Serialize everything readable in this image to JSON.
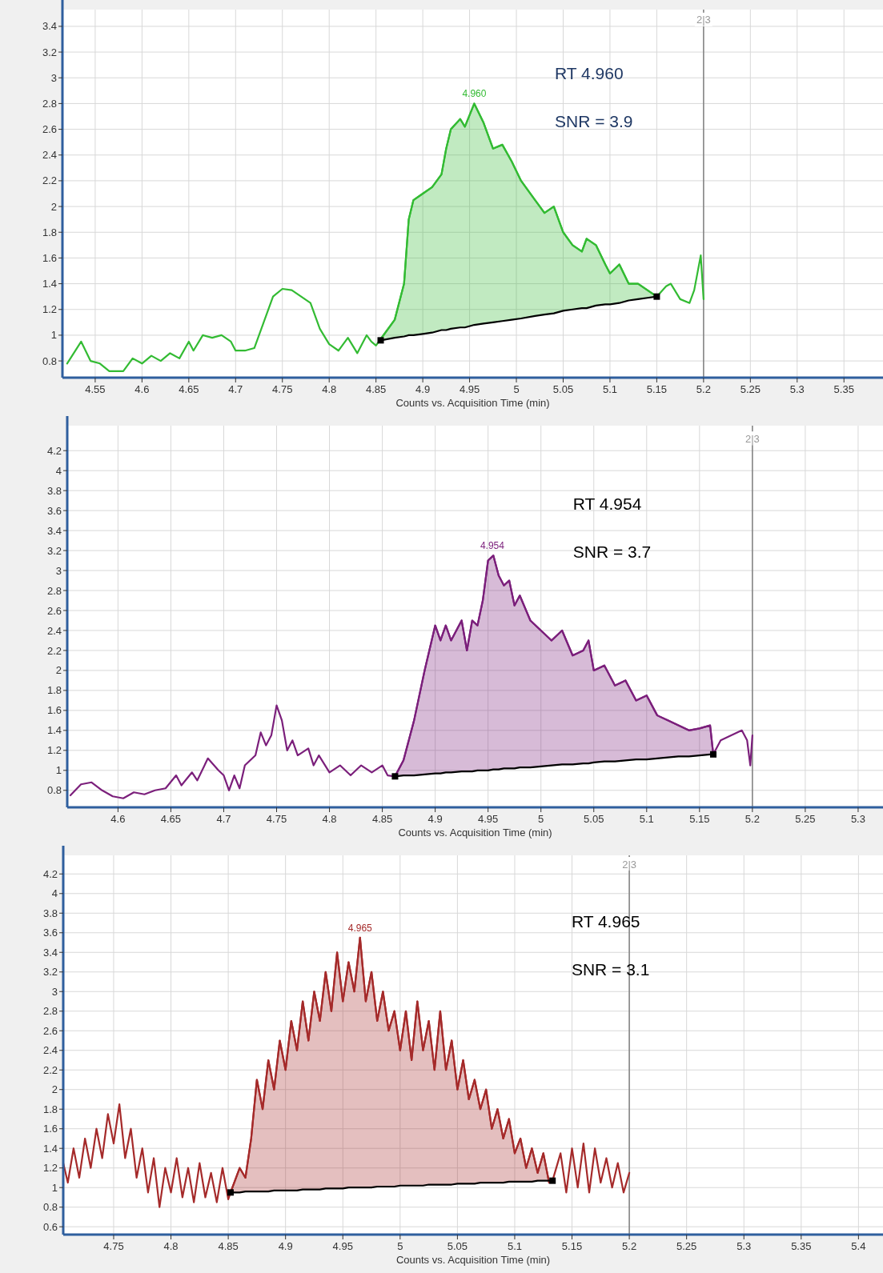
{
  "chart_data": [
    {
      "type": "line",
      "xlabel": "Counts vs. Acquisition Time (min)",
      "xlim": [
        4.515,
        5.39
      ],
      "ylim": [
        0.67,
        3.53
      ],
      "xticks": [
        4.55,
        4.6,
        4.65,
        4.7,
        4.75,
        4.8,
        4.85,
        4.9,
        4.95,
        5,
        5.05,
        5.1,
        5.15,
        5.2,
        5.25,
        5.3,
        5.35
      ],
      "yticks": [
        0.8,
        1,
        1.2,
        1.4,
        1.6,
        1.8,
        2,
        2.2,
        2.4,
        2.6,
        2.8,
        3,
        3.2,
        3.4
      ],
      "grid": true,
      "ref_lines": [
        {
          "axis": "x",
          "value": 5.2
        }
      ],
      "annotations": [
        {
          "text": "2|3",
          "x": 5.2,
          "y": 3.45
        },
        {
          "text": "4.960",
          "x": 4.955,
          "y": 2.8
        },
        "RT 4.960",
        "SNR = 3.9"
      ],
      "series": [
        {
          "type": "line",
          "color": "#33bb33",
          "x": [
            4.52,
            4.535,
            4.545,
            4.555,
            4.565,
            4.58,
            4.59,
            4.6,
            4.61,
            4.62,
            4.63,
            4.64,
            4.65,
            4.655,
            4.665,
            4.675,
            4.685,
            4.695,
            4.7,
            4.71,
            4.72,
            4.73,
            4.74,
            4.75,
            4.76,
            4.77,
            4.78,
            4.79,
            4.8,
            4.81,
            4.82,
            4.83,
            4.84,
            4.845,
            4.85,
            4.855,
            4.87,
            4.88,
            4.885,
            4.89,
            4.9,
            4.91,
            4.92,
            4.925,
            4.93,
            4.94,
            4.945,
            4.955,
            4.965,
            4.975,
            4.985,
            4.995,
            5.005,
            5.02,
            5.03,
            5.04,
            5.05,
            5.06,
            5.07,
            5.075,
            5.085,
            5.095,
            5.1,
            5.11,
            5.12,
            5.13,
            5.14,
            5.15,
            5.16,
            5.165,
            5.175,
            5.185,
            5.19,
            5.197,
            5.2
          ],
          "values": [
            0.78,
            0.95,
            0.8,
            0.78,
            0.72,
            0.72,
            0.82,
            0.78,
            0.84,
            0.8,
            0.86,
            0.82,
            0.95,
            0.88,
            1.0,
            0.98,
            1.0,
            0.95,
            0.88,
            0.88,
            0.9,
            1.1,
            1.3,
            1.36,
            1.35,
            1.3,
            1.25,
            1.05,
            0.93,
            0.88,
            0.98,
            0.86,
            1.0,
            0.95,
            0.92,
            0.97,
            1.12,
            1.4,
            1.9,
            2.05,
            2.1,
            2.15,
            2.25,
            2.45,
            2.6,
            2.68,
            2.62,
            2.8,
            2.65,
            2.45,
            2.48,
            2.35,
            2.2,
            2.05,
            1.95,
            2.0,
            1.8,
            1.7,
            1.65,
            1.75,
            1.7,
            1.55,
            1.48,
            1.55,
            1.4,
            1.4,
            1.35,
            1.3,
            1.38,
            1.4,
            1.28,
            1.25,
            1.35,
            1.62,
            1.28
          ]
        },
        {
          "type": "line",
          "color": "#33bb33",
          "x": [
            4.855,
            4.87,
            4.88,
            4.885,
            4.89,
            4.9,
            4.91,
            4.92,
            4.925,
            4.93,
            4.94,
            4.945,
            4.955,
            4.965,
            4.975,
            4.985,
            4.995,
            5.005,
            5.02,
            5.03,
            5.04,
            5.05,
            5.06,
            5.07,
            5.075,
            5.085,
            5.095,
            5.1,
            5.11,
            5.12,
            5.13,
            5.14,
            5.15
          ],
          "values": [
            0.97,
            1.12,
            1.4,
            1.9,
            2.05,
            2.1,
            2.15,
            2.25,
            2.45,
            2.6,
            2.68,
            2.62,
            2.8,
            2.65,
            2.45,
            2.48,
            2.35,
            2.2,
            2.05,
            1.95,
            2.0,
            1.8,
            1.7,
            1.65,
            1.75,
            1.7,
            1.55,
            1.48,
            1.55,
            1.4,
            1.4,
            1.35,
            1.3
          ],
          "upper": [
            0.97,
            1.12,
            1.4,
            1.9,
            2.05,
            2.1,
            2.15,
            2.25,
            2.45,
            2.6,
            2.68,
            2.62,
            2.8,
            2.65,
            2.45,
            2.48,
            2.35,
            2.2,
            2.05,
            1.95,
            2.0,
            1.8,
            1.7,
            1.65,
            1.75,
            1.7,
            1.55,
            1.48,
            1.55,
            1.4,
            1.4,
            1.35,
            1.3
          ],
          "lower": [
            0.96,
            0.98,
            0.99,
            1.0,
            1.0,
            1.01,
            1.02,
            1.04,
            1.04,
            1.05,
            1.06,
            1.06,
            1.08,
            1.09,
            1.1,
            1.11,
            1.12,
            1.13,
            1.15,
            1.16,
            1.17,
            1.19,
            1.2,
            1.21,
            1.21,
            1.23,
            1.24,
            1.24,
            1.25,
            1.27,
            1.28,
            1.29,
            1.3
          ]
        },
        {
          "type": "line",
          "color": "#000000",
          "x": [
            4.855,
            4.87,
            4.88,
            4.885,
            4.89,
            4.9,
            4.91,
            4.92,
            4.925,
            4.93,
            4.94,
            4.945,
            4.955,
            4.965,
            4.975,
            4.985,
            4.995,
            5.005,
            5.02,
            5.03,
            5.04,
            5.05,
            5.06,
            5.07,
            5.075,
            5.085,
            5.095,
            5.1,
            5.11,
            5.12,
            5.13,
            5.14,
            5.15
          ],
          "values": [
            0.96,
            0.98,
            0.99,
            1.0,
            1.0,
            1.01,
            1.02,
            1.04,
            1.04,
            1.05,
            1.06,
            1.06,
            1.08,
            1.09,
            1.1,
            1.11,
            1.12,
            1.13,
            1.15,
            1.16,
            1.17,
            1.19,
            1.2,
            1.21,
            1.21,
            1.23,
            1.24,
            1.24,
            1.25,
            1.27,
            1.28,
            1.29,
            1.3
          ]
        },
        {
          "type": "scatter",
          "color": "#000000",
          "marker": "square",
          "x": [
            4.855,
            5.15
          ],
          "values": [
            0.96,
            1.3
          ]
        }
      ]
    },
    {
      "type": "line",
      "xlabel": "Counts vs. Acquisition Time (min)",
      "xlim": [
        4.552,
        5.322
      ],
      "ylim": [
        0.63,
        4.45
      ],
      "xticks": [
        4.6,
        4.65,
        4.7,
        4.75,
        4.8,
        4.85,
        4.9,
        4.95,
        5,
        5.05,
        5.1,
        5.15,
        5.2,
        5.25,
        5.3
      ],
      "yticks": [
        0.8,
        1,
        1.2,
        1.4,
        1.6,
        1.8,
        2,
        2.2,
        2.4,
        2.6,
        2.8,
        3,
        3.2,
        3.4,
        3.6,
        3.8,
        4,
        4.2
      ],
      "grid": true,
      "ref_lines": [
        {
          "axis": "x",
          "value": 5.2
        }
      ],
      "annotations": [
        {
          "text": "2|3",
          "x": 5.2,
          "y": 4.32
        },
        {
          "text": "4.954",
          "x": 4.954,
          "y": 3.15
        },
        "RT 4.954",
        "SNR = 3.7"
      ],
      "series": [
        {
          "type": "line",
          "color": "#7b1f7b",
          "x": [
            4.555,
            4.565,
            4.575,
            4.585,
            4.595,
            4.605,
            4.615,
            4.625,
            4.635,
            4.645,
            4.655,
            4.66,
            4.67,
            4.675,
            4.685,
            4.695,
            4.7,
            4.705,
            4.71,
            4.715,
            4.72,
            4.73,
            4.735,
            4.74,
            4.745,
            4.75,
            4.755,
            4.76,
            4.765,
            4.77,
            4.78,
            4.785,
            4.79,
            4.8,
            4.81,
            4.82,
            4.83,
            4.84,
            4.85,
            4.855,
            4.862,
            4.87,
            4.88,
            4.89,
            4.9,
            4.905,
            4.91,
            4.915,
            4.925,
            4.93,
            4.935,
            4.94,
            4.945,
            4.95,
            4.955,
            4.96,
            4.965,
            4.97,
            4.975,
            4.98,
            4.99,
            5.0,
            5.01,
            5.02,
            5.03,
            5.04,
            5.045,
            5.05,
            5.06,
            5.065,
            5.07,
            5.08,
            5.09,
            5.1,
            5.11,
            5.12,
            5.13,
            5.14,
            5.15,
            5.16,
            5.163,
            5.17,
            5.18,
            5.19,
            5.195,
            5.198,
            5.2
          ],
          "values": [
            0.75,
            0.86,
            0.88,
            0.8,
            0.74,
            0.72,
            0.78,
            0.76,
            0.8,
            0.82,
            0.95,
            0.85,
            0.98,
            0.9,
            1.12,
            1.0,
            0.95,
            0.8,
            0.95,
            0.82,
            1.05,
            1.15,
            1.38,
            1.25,
            1.35,
            1.65,
            1.5,
            1.2,
            1.3,
            1.15,
            1.22,
            1.05,
            1.15,
            0.98,
            1.05,
            0.95,
            1.05,
            0.98,
            1.05,
            0.95,
            0.94,
            1.1,
            1.5,
            2.0,
            2.45,
            2.3,
            2.45,
            2.3,
            2.5,
            2.2,
            2.5,
            2.45,
            2.7,
            3.1,
            3.15,
            2.95,
            2.85,
            2.9,
            2.65,
            2.75,
            2.5,
            2.4,
            2.3,
            2.4,
            2.15,
            2.2,
            2.3,
            2.0,
            2.05,
            1.95,
            1.85,
            1.9,
            1.7,
            1.75,
            1.55,
            1.5,
            1.45,
            1.4,
            1.42,
            1.45,
            1.16,
            1.3,
            1.35,
            1.4,
            1.3,
            1.05,
            1.35
          ]
        },
        {
          "type": "line",
          "color": "#7b1f7b",
          "x": [
            4.862,
            4.87,
            4.88,
            4.89,
            4.9,
            4.905,
            4.91,
            4.915,
            4.925,
            4.93,
            4.935,
            4.94,
            4.945,
            4.95,
            4.955,
            4.96,
            4.965,
            4.97,
            4.975,
            4.98,
            4.99,
            5.0,
            5.01,
            5.02,
            5.03,
            5.04,
            5.045,
            5.05,
            5.06,
            5.065,
            5.07,
            5.08,
            5.09,
            5.1,
            5.11,
            5.12,
            5.13,
            5.14,
            5.15,
            5.16,
            5.163
          ],
          "values": [
            0.94,
            1.1,
            1.5,
            2.0,
            2.45,
            2.3,
            2.45,
            2.3,
            2.5,
            2.2,
            2.5,
            2.45,
            2.7,
            3.1,
            3.15,
            2.95,
            2.85,
            2.9,
            2.65,
            2.75,
            2.5,
            2.4,
            2.3,
            2.4,
            2.15,
            2.2,
            2.3,
            2.0,
            2.05,
            1.95,
            1.85,
            1.9,
            1.7,
            1.75,
            1.55,
            1.5,
            1.45,
            1.4,
            1.42,
            1.45,
            1.16
          ],
          "upper": [
            0.94,
            1.1,
            1.5,
            2.0,
            2.45,
            2.3,
            2.45,
            2.3,
            2.5,
            2.2,
            2.5,
            2.45,
            2.7,
            3.1,
            3.15,
            2.95,
            2.85,
            2.9,
            2.65,
            2.75,
            2.5,
            2.4,
            2.3,
            2.4,
            2.15,
            2.2,
            2.3,
            2.0,
            2.05,
            1.95,
            1.85,
            1.9,
            1.7,
            1.75,
            1.55,
            1.5,
            1.45,
            1.4,
            1.42,
            1.45,
            1.16
          ],
          "lower": [
            0.94,
            0.95,
            0.95,
            0.96,
            0.97,
            0.97,
            0.98,
            0.98,
            0.99,
            0.99,
            0.99,
            1.0,
            1.0,
            1.0,
            1.01,
            1.01,
            1.02,
            1.02,
            1.02,
            1.03,
            1.03,
            1.04,
            1.05,
            1.06,
            1.06,
            1.07,
            1.07,
            1.08,
            1.09,
            1.09,
            1.09,
            1.1,
            1.11,
            1.11,
            1.12,
            1.13,
            1.14,
            1.14,
            1.15,
            1.16,
            1.16
          ]
        },
        {
          "type": "line",
          "color": "#000000",
          "x": [
            4.862,
            4.87,
            4.88,
            4.89,
            4.9,
            4.905,
            4.91,
            4.915,
            4.925,
            4.93,
            4.935,
            4.94,
            4.945,
            4.95,
            4.955,
            4.96,
            4.965,
            4.97,
            4.975,
            4.98,
            4.99,
            5.0,
            5.01,
            5.02,
            5.03,
            5.04,
            5.045,
            5.05,
            5.06,
            5.065,
            5.07,
            5.08,
            5.09,
            5.1,
            5.11,
            5.12,
            5.13,
            5.14,
            5.15,
            5.16,
            5.163
          ],
          "values": [
            0.94,
            0.95,
            0.95,
            0.96,
            0.97,
            0.97,
            0.98,
            0.98,
            0.99,
            0.99,
            0.99,
            1.0,
            1.0,
            1.0,
            1.01,
            1.01,
            1.02,
            1.02,
            1.02,
            1.03,
            1.03,
            1.04,
            1.05,
            1.06,
            1.06,
            1.07,
            1.07,
            1.08,
            1.09,
            1.09,
            1.09,
            1.1,
            1.11,
            1.11,
            1.12,
            1.13,
            1.14,
            1.14,
            1.15,
            1.16,
            1.16
          ]
        },
        {
          "type": "scatter",
          "color": "#000000",
          "marker": "square",
          "x": [
            4.862,
            5.163
          ],
          "values": [
            0.94,
            1.16
          ]
        }
      ]
    },
    {
      "type": "line",
      "xlabel": "Counts vs. Acquisition Time (min)",
      "xlim": [
        4.706,
        5.42
      ],
      "ylim": [
        0.52,
        4.39
      ],
      "xticks": [
        4.75,
        4.8,
        4.85,
        4.9,
        4.95,
        5,
        5.05,
        5.1,
        5.15,
        5.2,
        5.25,
        5.3,
        5.35,
        5.4
      ],
      "yticks": [
        0.6,
        0.8,
        1,
        1.2,
        1.4,
        1.6,
        1.8,
        2,
        2.2,
        2.4,
        2.6,
        2.8,
        3,
        3.2,
        3.4,
        3.6,
        3.8,
        4,
        4.2
      ],
      "grid": true,
      "ref_lines": [
        {
          "axis": "x",
          "value": 5.2
        }
      ],
      "annotations": [
        {
          "text": "2|3",
          "x": 5.2,
          "y": 4.3
        },
        {
          "text": "4.965",
          "x": 4.965,
          "y": 3.55
        },
        "RT 4.965",
        "SNR = 3.1"
      ],
      "series": [
        {
          "type": "line",
          "color": "#a52a2a",
          "x": [
            4.706,
            4.71,
            4.715,
            4.72,
            4.725,
            4.73,
            4.735,
            4.74,
            4.745,
            4.75,
            4.755,
            4.76,
            4.765,
            4.77,
            4.775,
            4.78,
            4.785,
            4.79,
            4.795,
            4.8,
            4.805,
            4.81,
            4.815,
            4.82,
            4.825,
            4.83,
            4.835,
            4.84,
            4.845,
            4.85,
            4.852,
            4.86,
            4.865,
            4.87,
            4.875,
            4.88,
            4.885,
            4.89,
            4.895,
            4.9,
            4.905,
            4.91,
            4.915,
            4.92,
            4.925,
            4.93,
            4.935,
            4.94,
            4.945,
            4.95,
            4.955,
            4.96,
            4.965,
            4.97,
            4.975,
            4.98,
            4.985,
            4.99,
            4.995,
            5.0,
            5.005,
            5.01,
            5.015,
            5.02,
            5.025,
            5.03,
            5.035,
            5.04,
            5.045,
            5.05,
            5.055,
            5.06,
            5.065,
            5.07,
            5.075,
            5.08,
            5.085,
            5.09,
            5.095,
            5.1,
            5.105,
            5.11,
            5.115,
            5.12,
            5.125,
            5.13,
            5.133,
            5.14,
            5.145,
            5.15,
            5.155,
            5.16,
            5.165,
            5.17,
            5.175,
            5.18,
            5.185,
            5.19,
            5.195,
            5.2
          ],
          "values": [
            1.25,
            1.05,
            1.4,
            1.1,
            1.5,
            1.2,
            1.6,
            1.3,
            1.75,
            1.45,
            1.85,
            1.3,
            1.6,
            1.1,
            1.4,
            0.95,
            1.3,
            0.8,
            1.2,
            0.95,
            1.3,
            0.9,
            1.2,
            0.85,
            1.25,
            0.9,
            1.15,
            0.85,
            1.2,
            0.88,
            0.95,
            1.2,
            1.1,
            1.5,
            2.1,
            1.8,
            2.3,
            2.0,
            2.5,
            2.2,
            2.7,
            2.4,
            2.9,
            2.5,
            3.0,
            2.7,
            3.2,
            2.8,
            3.4,
            2.9,
            3.3,
            3.0,
            3.55,
            2.9,
            3.2,
            2.7,
            3.0,
            2.6,
            2.8,
            2.4,
            2.8,
            2.3,
            2.9,
            2.4,
            2.7,
            2.2,
            2.8,
            2.2,
            2.5,
            2.0,
            2.3,
            1.9,
            2.1,
            1.8,
            2.0,
            1.6,
            1.8,
            1.5,
            1.7,
            1.35,
            1.5,
            1.2,
            1.4,
            1.15,
            1.35,
            1.05,
            1.07,
            1.35,
            0.95,
            1.4,
            1.0,
            1.45,
            0.95,
            1.4,
            1.05,
            1.3,
            1.0,
            1.25,
            0.95,
            1.15
          ]
        },
        {
          "type": "line",
          "color": "#a52a2a",
          "x": [
            4.852,
            4.86,
            4.865,
            4.87,
            4.875,
            4.88,
            4.885,
            4.89,
            4.895,
            4.9,
            4.905,
            4.91,
            4.915,
            4.92,
            4.925,
            4.93,
            4.935,
            4.94,
            4.945,
            4.95,
            4.955,
            4.96,
            4.965,
            4.97,
            4.975,
            4.98,
            4.985,
            4.99,
            4.995,
            5.0,
            5.005,
            5.01,
            5.015,
            5.02,
            5.025,
            5.03,
            5.035,
            5.04,
            5.045,
            5.05,
            5.055,
            5.06,
            5.065,
            5.07,
            5.075,
            5.08,
            5.085,
            5.09,
            5.095,
            5.1,
            5.105,
            5.11,
            5.115,
            5.12,
            5.125,
            5.13,
            5.133
          ],
          "values": [
            0.95,
            1.2,
            1.1,
            1.5,
            2.1,
            1.8,
            2.3,
            2.0,
            2.5,
            2.2,
            2.7,
            2.4,
            2.9,
            2.5,
            3.0,
            2.7,
            3.2,
            2.8,
            3.4,
            2.9,
            3.3,
            3.0,
            3.55,
            2.9,
            3.2,
            2.7,
            3.0,
            2.6,
            2.8,
            2.4,
            2.8,
            2.3,
            2.9,
            2.4,
            2.7,
            2.2,
            2.8,
            2.2,
            2.5,
            2.0,
            2.3,
            1.9,
            2.1,
            1.8,
            2.0,
            1.6,
            1.8,
            1.5,
            1.7,
            1.35,
            1.5,
            1.2,
            1.4,
            1.15,
            1.35,
            1.05,
            1.07
          ],
          "upper": [
            0.95,
            1.2,
            1.1,
            1.5,
            2.1,
            1.8,
            2.3,
            2.0,
            2.5,
            2.2,
            2.7,
            2.4,
            2.9,
            2.5,
            3.0,
            2.7,
            3.2,
            2.8,
            3.4,
            2.9,
            3.3,
            3.0,
            3.55,
            2.9,
            3.2,
            2.7,
            3.0,
            2.6,
            2.8,
            2.4,
            2.8,
            2.3,
            2.9,
            2.4,
            2.7,
            2.2,
            2.8,
            2.2,
            2.5,
            2.0,
            2.3,
            1.9,
            2.1,
            1.8,
            2.0,
            1.6,
            1.8,
            1.5,
            1.7,
            1.35,
            1.5,
            1.2,
            1.4,
            1.15,
            1.35,
            1.05,
            1.07
          ],
          "lower": [
            0.95,
            0.95,
            0.96,
            0.96,
            0.96,
            0.96,
            0.96,
            0.97,
            0.97,
            0.97,
            0.97,
            0.97,
            0.98,
            0.98,
            0.98,
            0.98,
            0.99,
            0.99,
            0.99,
            0.99,
            1.0,
            1.0,
            1.0,
            1.0,
            1.0,
            1.01,
            1.01,
            1.01,
            1.01,
            1.02,
            1.02,
            1.02,
            1.02,
            1.02,
            1.03,
            1.03,
            1.03,
            1.03,
            1.03,
            1.04,
            1.04,
            1.04,
            1.04,
            1.05,
            1.05,
            1.05,
            1.05,
            1.05,
            1.06,
            1.06,
            1.06,
            1.06,
            1.06,
            1.07,
            1.07,
            1.07,
            1.07
          ]
        },
        {
          "type": "line",
          "color": "#000000",
          "x": [
            4.852,
            4.86,
            4.865,
            4.87,
            4.875,
            4.88,
            4.885,
            4.89,
            4.895,
            4.9,
            4.905,
            4.91,
            4.915,
            4.92,
            4.925,
            4.93,
            4.935,
            4.94,
            4.945,
            4.95,
            4.955,
            4.96,
            4.965,
            4.97,
            4.975,
            4.98,
            4.985,
            4.99,
            4.995,
            5.0,
            5.005,
            5.01,
            5.015,
            5.02,
            5.025,
            5.03,
            5.035,
            5.04,
            5.045,
            5.05,
            5.055,
            5.06,
            5.065,
            5.07,
            5.075,
            5.08,
            5.085,
            5.09,
            5.095,
            5.1,
            5.105,
            5.11,
            5.115,
            5.12,
            5.125,
            5.13,
            5.133
          ],
          "values": [
            0.95,
            0.95,
            0.96,
            0.96,
            0.96,
            0.96,
            0.96,
            0.97,
            0.97,
            0.97,
            0.97,
            0.97,
            0.98,
            0.98,
            0.98,
            0.98,
            0.99,
            0.99,
            0.99,
            0.99,
            1.0,
            1.0,
            1.0,
            1.0,
            1.0,
            1.01,
            1.01,
            1.01,
            1.01,
            1.02,
            1.02,
            1.02,
            1.02,
            1.02,
            1.03,
            1.03,
            1.03,
            1.03,
            1.03,
            1.04,
            1.04,
            1.04,
            1.04,
            1.05,
            1.05,
            1.05,
            1.05,
            1.05,
            1.06,
            1.06,
            1.06,
            1.06,
            1.06,
            1.07,
            1.07,
            1.07,
            1.07
          ]
        },
        {
          "type": "scatter",
          "color": "#000000",
          "marker": "square",
          "x": [
            4.852,
            5.133
          ],
          "values": [
            0.95,
            1.07
          ]
        }
      ]
    }
  ]
}
